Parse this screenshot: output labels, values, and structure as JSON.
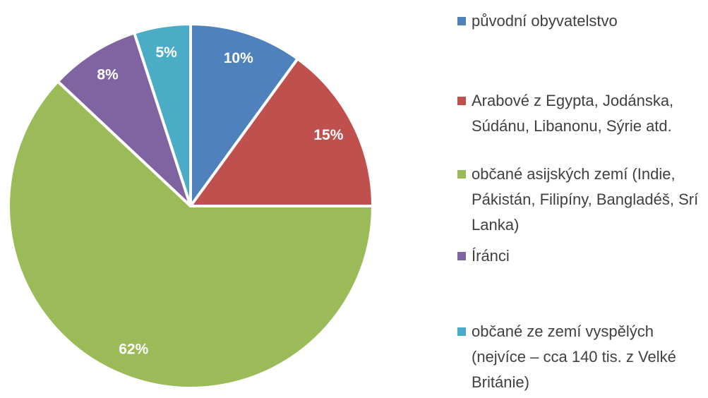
{
  "chart_data": {
    "type": "pie",
    "series": [
      {
        "name": "",
        "categories": [
          "původní obyvatelstvo",
          "Arabové z Egypta, Jodánska, Súdánu, Libanonu, Sýrie atd.",
          "občané asijských zemí (Indie, Pákistán, Filipíny, Bangladéš, Srí Lanka)",
          "Íránci",
          "občané ze zemí vyspělých (nejvíce – cca 140 tis. z Velké Británie)"
        ],
        "values": [
          10,
          15,
          62,
          8,
          5
        ],
        "value_labels": [
          "10%",
          "15%",
          "62%",
          "8%",
          "5%"
        ],
        "colors": [
          "#4f81bd",
          "#c0504d",
          "#9bbb59",
          "#8064a2",
          "#4bacc6"
        ]
      }
    ],
    "legend": "right"
  }
}
